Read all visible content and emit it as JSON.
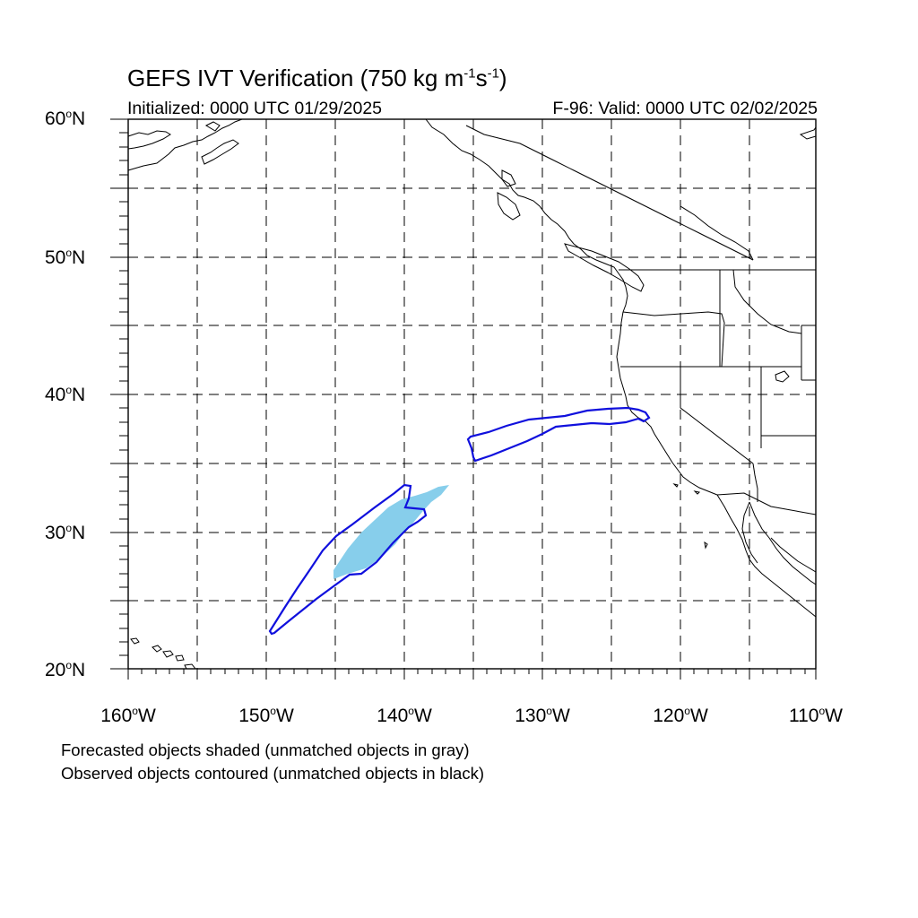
{
  "title": {
    "prefix": "GEFS IVT Verification (750 kg m",
    "exp1": "-1",
    "middle": "s",
    "exp2": "-1",
    "suffix": ")"
  },
  "initialized": "Initialized: 0000 UTC 01/29/2025",
  "valid": "F-96: Valid: 0000 UTC 02/02/2025",
  "degree_symbol": "o",
  "lat_labels": [
    {
      "num": "60",
      "hem": "N"
    },
    {
      "num": "50",
      "hem": "N"
    },
    {
      "num": "40",
      "hem": "N"
    },
    {
      "num": "30",
      "hem": "N"
    },
    {
      "num": "20",
      "hem": "N"
    }
  ],
  "lon_labels": [
    {
      "num": "160",
      "hem": "W"
    },
    {
      "num": "150",
      "hem": "W"
    },
    {
      "num": "140",
      "hem": "W"
    },
    {
      "num": "130",
      "hem": "W"
    },
    {
      "num": "120",
      "hem": "W"
    },
    {
      "num": "110",
      "hem": "W"
    }
  ],
  "notes": [
    "Forecasted objects shaded (unmatched objects in gray)",
    "Observed objects contoured (unmatched objects in black)"
  ],
  "colors": {
    "forecast_fill": "#87ceeb",
    "observed_contour": "#1010dd",
    "grid": "#000000",
    "coast": "#000000"
  },
  "map": {
    "lon_range": [
      -160,
      -110
    ],
    "lat_range": [
      20,
      60
    ],
    "gridlines": "dashed every 5 degrees"
  }
}
